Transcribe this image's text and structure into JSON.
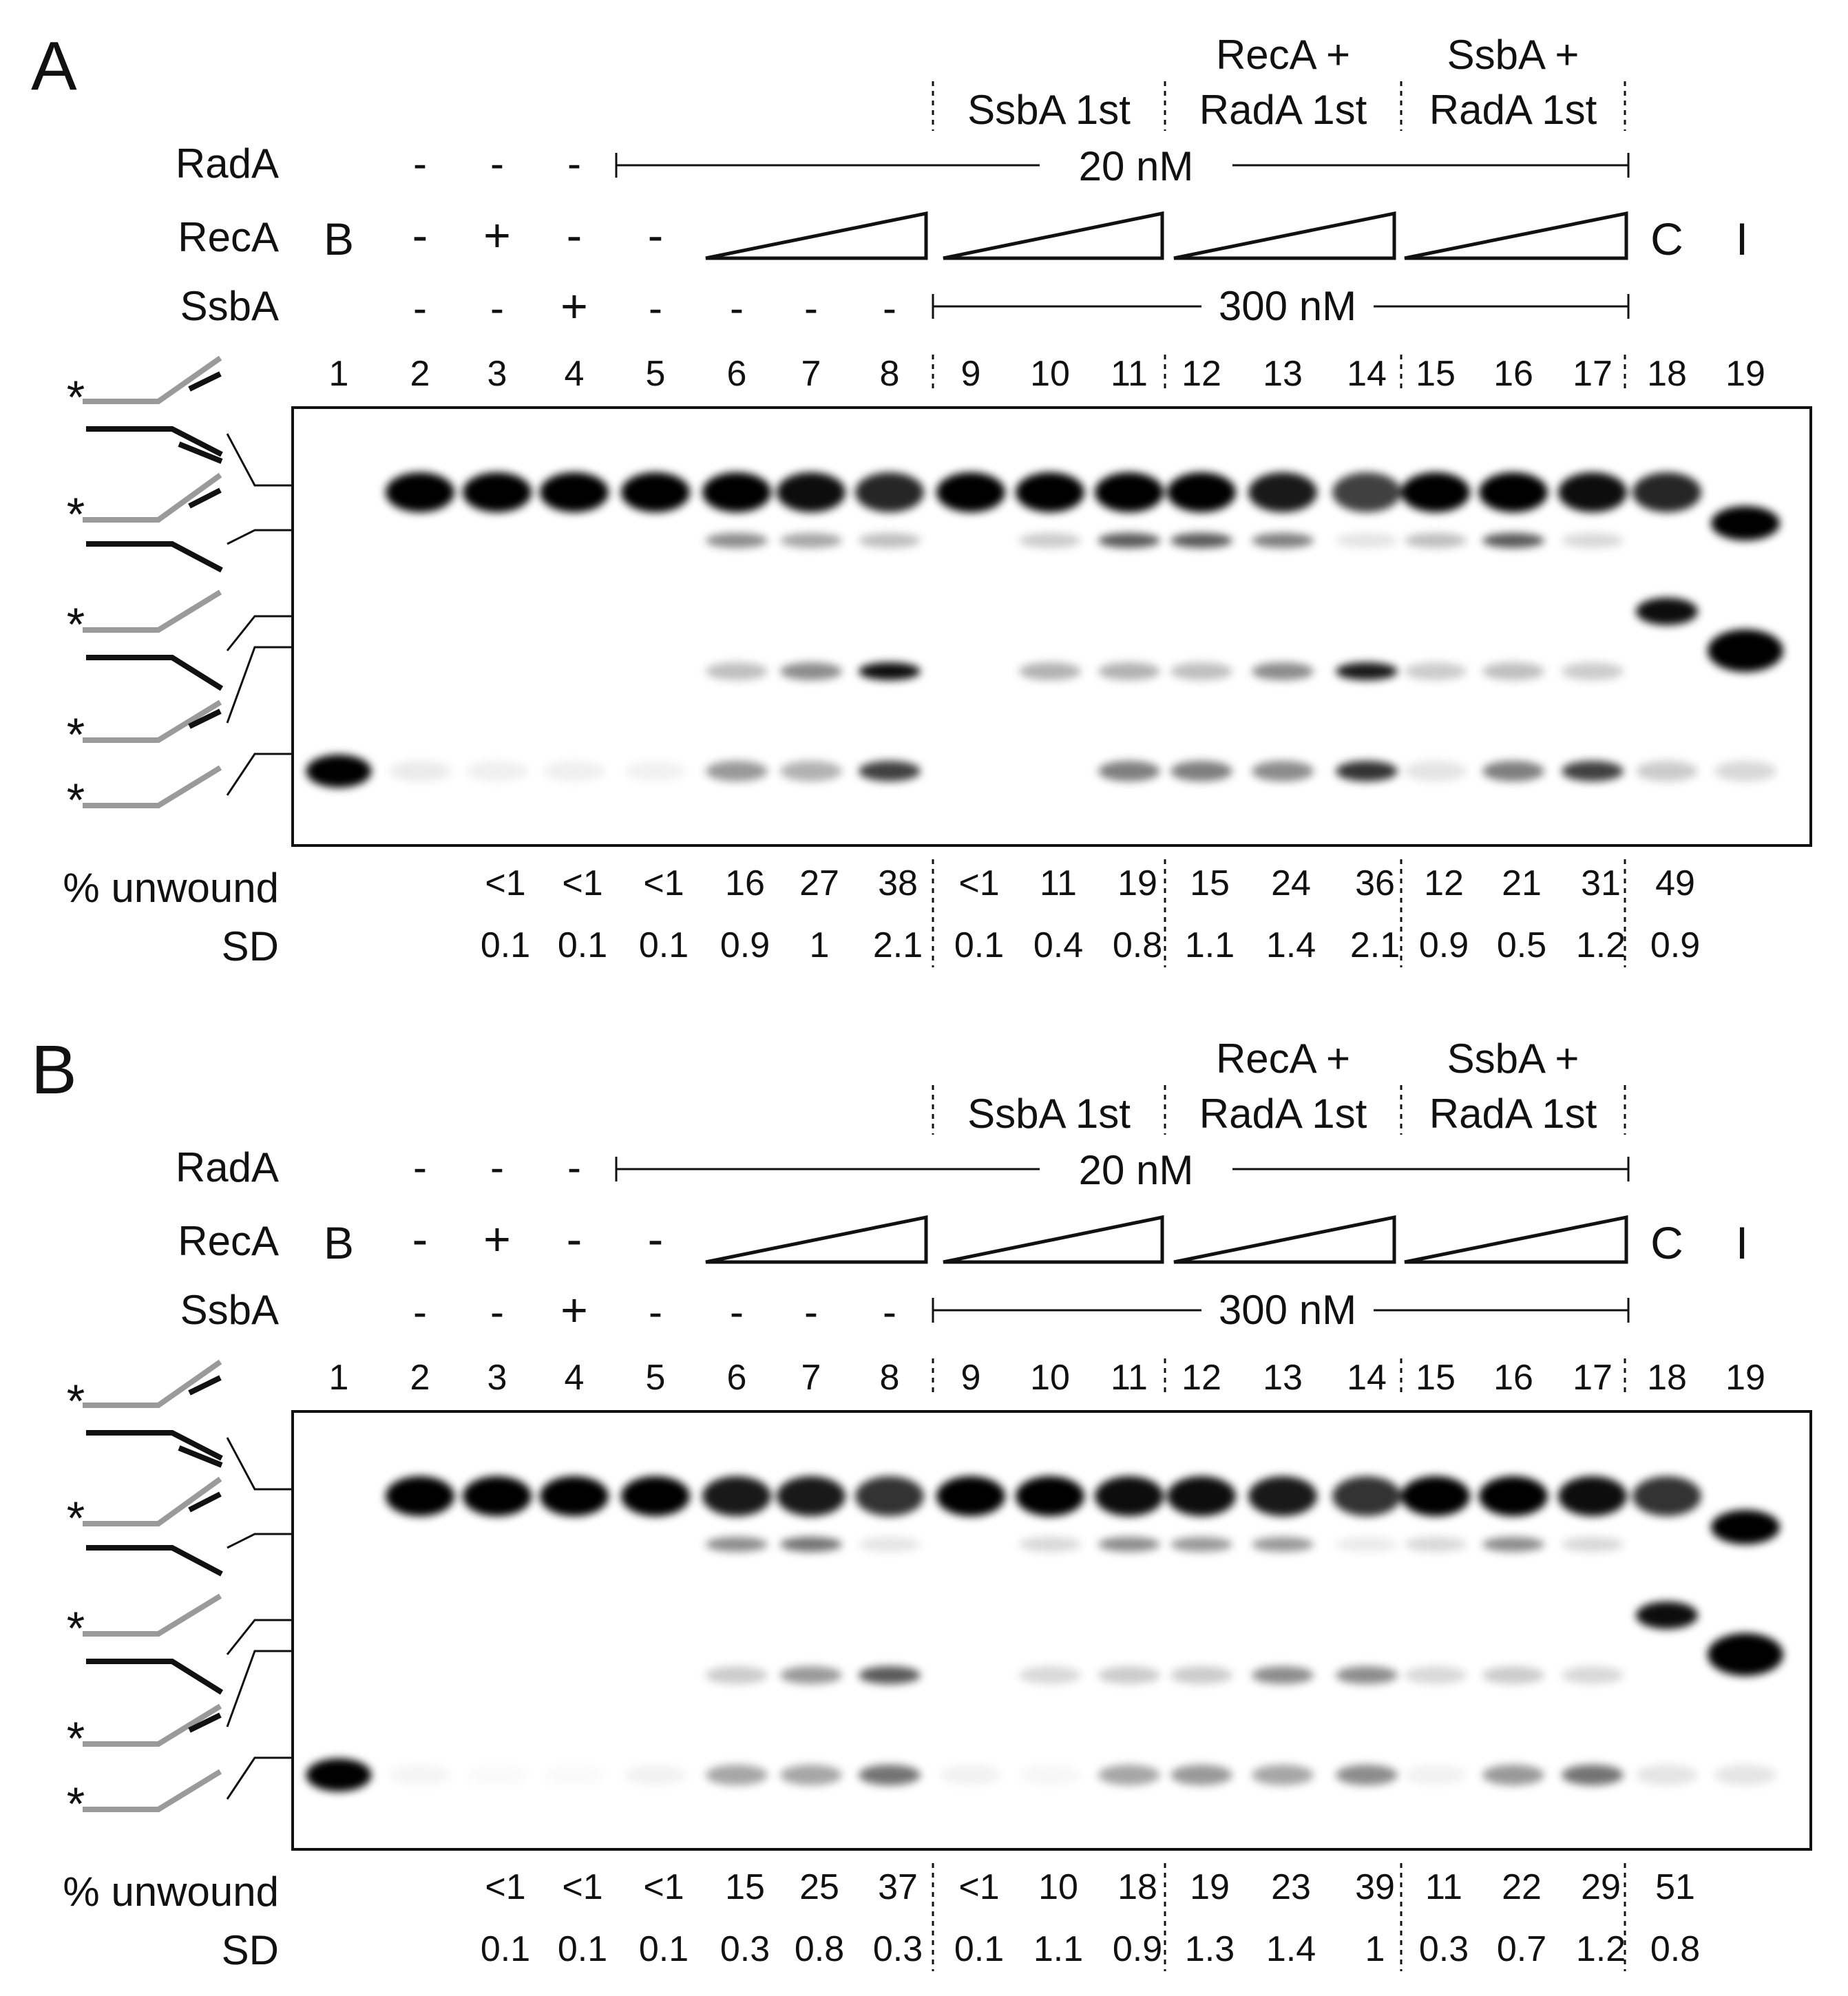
{
  "panels": [
    {
      "letter": "A",
      "conditions": {
        "radA_label": "RadA",
        "recA_label": "RecA",
        "ssbA_label": "SsbA",
        "radA_marks": [
          "-",
          "-",
          "-"
        ],
        "radA_conc": "20 nM",
        "recA_marks": [
          "-",
          "+",
          "-",
          "-"
        ],
        "ssbA_marks": [
          "-",
          "-",
          "+",
          "-",
          "-",
          "-",
          "-"
        ],
        "ssbA_conc": "300 nM",
        "blank_label": "B",
        "control_label": "C",
        "intermediate_label": "I",
        "group_labels": [
          {
            "line1": "",
            "line2": "SsbA 1st"
          },
          {
            "line1": "RecA +",
            "line2": "RadA 1st"
          },
          {
            "line1": "SsbA +",
            "line2": "RadA 1st"
          }
        ]
      },
      "lanes": [
        "1",
        "2",
        "3",
        "4",
        "5",
        "6",
        "7",
        "8",
        "9",
        "10",
        "11",
        "12",
        "13",
        "14",
        "15",
        "16",
        "17",
        "18",
        "19"
      ],
      "unwound_label": "% unwound",
      "sd_label": "SD",
      "unwound": [
        "",
        "",
        "<1",
        "<1",
        "<1",
        "16",
        "27",
        "38",
        "<1",
        "11",
        "19",
        "15",
        "24",
        "36",
        "12",
        "21",
        "31",
        "49",
        ""
      ],
      "sd": [
        "",
        "",
        "0.1",
        "0.1",
        "0.1",
        "0.9",
        "1",
        "2.1",
        "0.1",
        "0.4",
        "0.8",
        "1.1",
        "1.4",
        "2.1",
        "0.9",
        "0.5",
        "1.2",
        "0.9",
        ""
      ],
      "bands": {
        "top": [
          0,
          1,
          1,
          1,
          1,
          1,
          0.95,
          0.85,
          1,
          1,
          1,
          1,
          0.9,
          0.75,
          1,
          1,
          0.95,
          0.85,
          0
        ],
        "second": [
          0,
          0,
          0,
          0,
          0,
          0.45,
          0.35,
          0.25,
          0,
          0.2,
          0.65,
          0.65,
          0.5,
          0.1,
          0.25,
          0.65,
          0.15,
          0,
          0
        ],
        "third": [
          0,
          0,
          0,
          0,
          0,
          0.25,
          0.45,
          0.95,
          0,
          0.3,
          0.3,
          0.25,
          0.45,
          0.9,
          0.2,
          0.25,
          0.2,
          0,
          0
        ],
        "bottom": [
          1,
          0.08,
          0.06,
          0.06,
          0.05,
          0.4,
          0.3,
          0.75,
          0,
          0,
          0.5,
          0.5,
          0.45,
          0.8,
          0.1,
          0.5,
          0.75,
          0.2,
          0.15
        ],
        "c_band": 0.95,
        "i_upper": 1,
        "i_lower": 1
      }
    },
    {
      "letter": "B",
      "conditions": {
        "radA_label": "RadA",
        "recA_label": "RecA",
        "ssbA_label": "SsbA",
        "radA_marks": [
          "-",
          "-",
          "-"
        ],
        "radA_conc": "20 nM",
        "recA_marks": [
          "-",
          "+",
          "-",
          "-"
        ],
        "ssbA_marks": [
          "-",
          "-",
          "+",
          "-",
          "-",
          "-",
          "-"
        ],
        "ssbA_conc": "300 nM",
        "blank_label": "B",
        "control_label": "C",
        "intermediate_label": "I",
        "group_labels": [
          {
            "line1": "",
            "line2": "SsbA 1st"
          },
          {
            "line1": "RecA +",
            "line2": "RadA 1st"
          },
          {
            "line1": "SsbA +",
            "line2": "RadA 1st"
          }
        ]
      },
      "lanes": [
        "1",
        "2",
        "3",
        "4",
        "5",
        "6",
        "7",
        "8",
        "9",
        "10",
        "11",
        "12",
        "13",
        "14",
        "15",
        "16",
        "17",
        "18",
        "19"
      ],
      "unwound_label": "% unwound",
      "sd_label": "SD",
      "unwound": [
        "",
        "",
        "<1",
        "<1",
        "<1",
        "15",
        "25",
        "37",
        "<1",
        "10",
        "18",
        "19",
        "23",
        "39",
        "11",
        "22",
        "29",
        "51",
        ""
      ],
      "sd": [
        "",
        "",
        "0.1",
        "0.1",
        "0.1",
        "0.3",
        "0.8",
        "0.3",
        "0.1",
        "1.1",
        "0.9",
        "1.3",
        "1.4",
        "1",
        "0.3",
        "0.7",
        "1.2",
        "0.8",
        ""
      ],
      "bands": {
        "top": [
          0,
          1,
          1,
          1,
          1,
          0.9,
          0.9,
          0.8,
          1,
          1,
          0.95,
          0.95,
          0.9,
          0.8,
          1,
          1,
          0.95,
          0.8,
          0
        ],
        "second": [
          0,
          0,
          0,
          0,
          0,
          0.45,
          0.55,
          0.1,
          0,
          0.15,
          0.45,
          0.4,
          0.4,
          0.08,
          0.15,
          0.45,
          0.15,
          0,
          0
        ],
        "third": [
          0,
          0,
          0,
          0,
          0,
          0.2,
          0.4,
          0.65,
          0,
          0.15,
          0.2,
          0.2,
          0.45,
          0.45,
          0.15,
          0.2,
          0.15,
          0,
          0
        ],
        "bottom": [
          1,
          0.04,
          0.02,
          0.02,
          0.05,
          0.35,
          0.35,
          0.55,
          0.05,
          0.03,
          0.35,
          0.4,
          0.35,
          0.45,
          0.05,
          0.4,
          0.55,
          0.1,
          0.1
        ],
        "c_band": 0.95,
        "i_upper": 1,
        "i_lower": 1
      }
    }
  ]
}
